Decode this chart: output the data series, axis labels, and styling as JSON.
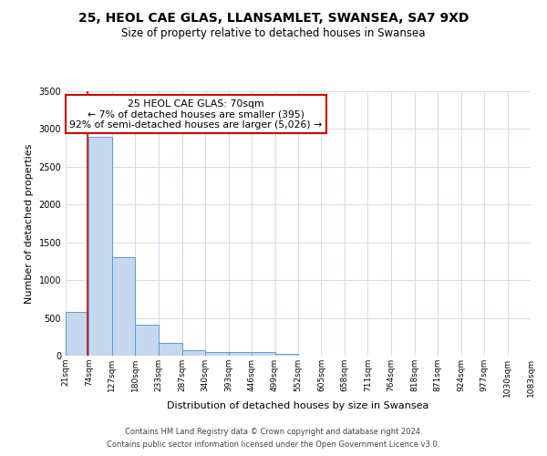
{
  "title": "25, HEOL CAE GLAS, LLANSAMLET, SWANSEA, SA7 9XD",
  "subtitle": "Size of property relative to detached houses in Swansea",
  "xlabel": "Distribution of detached houses by size in Swansea",
  "ylabel": "Number of detached properties",
  "footer_line1": "Contains HM Land Registry data © Crown copyright and database right 2024.",
  "footer_line2": "Contains public sector information licensed under the Open Government Licence v3.0.",
  "bin_edges": [
    21,
    74,
    127,
    180,
    233,
    287,
    340,
    393,
    446,
    499,
    552,
    605,
    658,
    711,
    764,
    818,
    871,
    924,
    977,
    1030,
    1083
  ],
  "bar_heights": [
    580,
    2900,
    1300,
    415,
    170,
    70,
    52,
    48,
    48,
    28,
    0,
    0,
    0,
    0,
    0,
    0,
    0,
    0,
    0,
    0
  ],
  "bar_color": "#c5d8f0",
  "bar_edge_color": "#5b9bd5",
  "property_size": 70,
  "red_line_color": "#cc0000",
  "annotation_text_line1": "25 HEOL CAE GLAS: 70sqm",
  "annotation_text_line2": "← 7% of detached houses are smaller (395)",
  "annotation_text_line3": "92% of semi-detached houses are larger (5,026) →",
  "annotation_box_color": "#ffffff",
  "annotation_box_edge_color": "#cc0000",
  "ylim": [
    0,
    3500
  ],
  "tick_labels": [
    "21sqm",
    "74sqm",
    "127sqm",
    "180sqm",
    "233sqm",
    "287sqm",
    "340sqm",
    "393sqm",
    "446sqm",
    "499sqm",
    "552sqm",
    "605sqm",
    "658sqm",
    "711sqm",
    "764sqm",
    "818sqm",
    "871sqm",
    "924sqm",
    "977sqm",
    "1030sqm",
    "1083sqm"
  ],
  "background_color": "#ffffff",
  "grid_color": "#d0dce8",
  "title_fontsize": 10,
  "subtitle_fontsize": 8.5,
  "ylabel_fontsize": 8,
  "xlabel_fontsize": 8,
  "tick_fontsize": 6.5,
  "annotation_fontsize": 7.8,
  "footer_fontsize": 6.0
}
